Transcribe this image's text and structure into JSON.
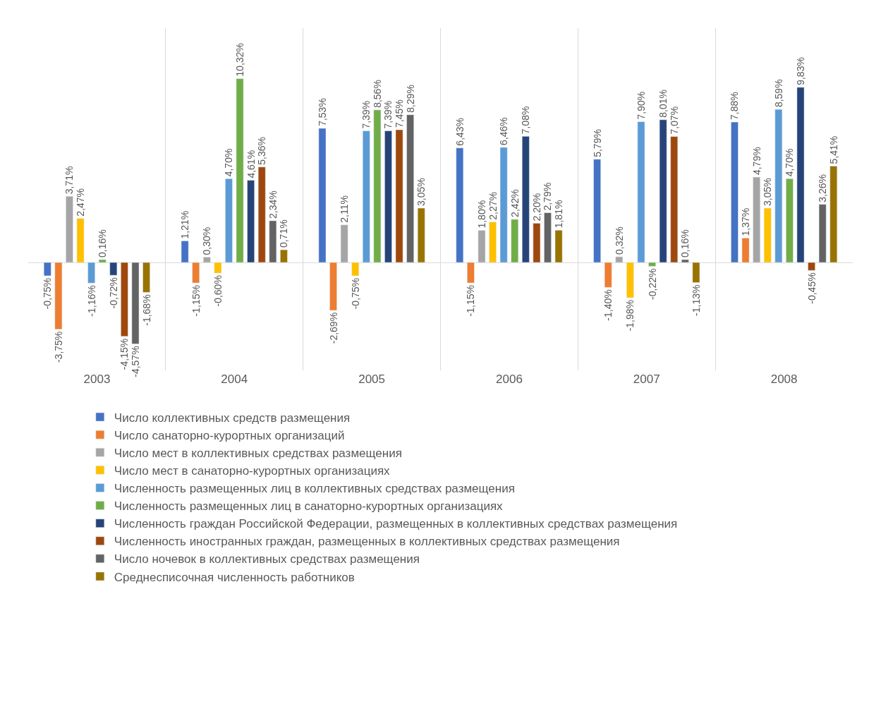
{
  "chart_data": {
    "type": "bar",
    "categories": [
      "2003",
      "2004",
      "2005",
      "2006",
      "2007",
      "2008"
    ],
    "series": [
      {
        "name": "Число коллективных средств размещения",
        "color": "#4472c4",
        "values": [
          -0.75,
          1.21,
          7.53,
          6.43,
          5.79,
          7.88
        ],
        "value_labels": [
          "-0,75%",
          "1,21%",
          "7,53%",
          "6,43%",
          "5,79%",
          "7,88%"
        ]
      },
      {
        "name": "Число санаторно-курортных организаций",
        "color": "#ed7d31",
        "values": [
          -3.75,
          -1.15,
          -2.69,
          -1.15,
          -1.4,
          1.37
        ],
        "value_labels": [
          "-3,75%",
          "-1,15%",
          "-2,69%",
          "-1,15%",
          "-1,40%",
          "1,37%"
        ]
      },
      {
        "name": "Число мест в коллективных средствах размещения",
        "color": "#a5a5a5",
        "values": [
          3.71,
          0.3,
          2.11,
          1.8,
          0.32,
          4.79
        ],
        "value_labels": [
          "3,71%",
          "0,30%",
          "2,11%",
          "1,80%",
          "0,32%",
          "4,79%"
        ]
      },
      {
        "name": "Число мест в санаторно-курортных организациях",
        "color": "#ffc000",
        "values": [
          2.47,
          -0.6,
          -0.75,
          2.27,
          -1.98,
          3.05
        ],
        "value_labels": [
          "2,47%",
          "-0,60%",
          "-0,75%",
          "2,27%",
          "-1,98%",
          "3,05%"
        ]
      },
      {
        "name": "Численность размещенных лиц в коллективных средствах размещения",
        "color": "#5b9bd5",
        "values": [
          -1.16,
          4.7,
          7.39,
          6.46,
          7.9,
          8.59
        ],
        "value_labels": [
          "-1,16%",
          "4,70%",
          "7,39%",
          "6,46%",
          "7,90%",
          "8,59%"
        ]
      },
      {
        "name": "Численность размещенных лиц в санаторно-курортных организациях",
        "color": "#70ad47",
        "values": [
          0.16,
          10.32,
          8.56,
          2.42,
          -0.22,
          4.7
        ],
        "value_labels": [
          "0,16%",
          "10,32%",
          "8,56%",
          "2,42%",
          "-0,22%",
          "4,70%"
        ]
      },
      {
        "name": "Численность граждан Российской Федерации, размещенных в коллективных средствах размещения",
        "color": "#264478",
        "values": [
          -0.72,
          4.61,
          7.39,
          7.08,
          8.01,
          9.83
        ],
        "value_labels": [
          "-0,72%",
          "4,61%",
          "7,39%",
          "7,08%",
          "8,01%",
          "9,83%"
        ]
      },
      {
        "name": "Численность иностранных граждан, размещенных в коллективных средствах размещения",
        "color": "#9e480e",
        "values": [
          -4.15,
          5.36,
          7.45,
          2.2,
          7.07,
          -0.45
        ],
        "value_labels": [
          "-4,15%",
          "5,36%",
          "7,45%",
          "2,20%",
          "7,07%",
          "-0,45%"
        ]
      },
      {
        "name": "Число ночевок в коллективных средствах размещения",
        "color": "#636363",
        "values": [
          -4.57,
          2.34,
          8.29,
          2.79,
          0.16,
          3.26
        ],
        "value_labels": [
          "-4,57%",
          "2,34%",
          "8,29%",
          "2,79%",
          "0,16%",
          "3,26%"
        ]
      },
      {
        "name": "Среднесписочная численность работников",
        "color": "#997300",
        "values": [
          -1.68,
          0.71,
          3.05,
          1.81,
          -1.13,
          5.41
        ],
        "value_labels": [
          "-1,68%",
          "0,71%",
          "3,05%",
          "1,81%",
          "-1,13%",
          "5,41%"
        ]
      }
    ],
    "grid": "x",
    "legend": "bottom"
  }
}
